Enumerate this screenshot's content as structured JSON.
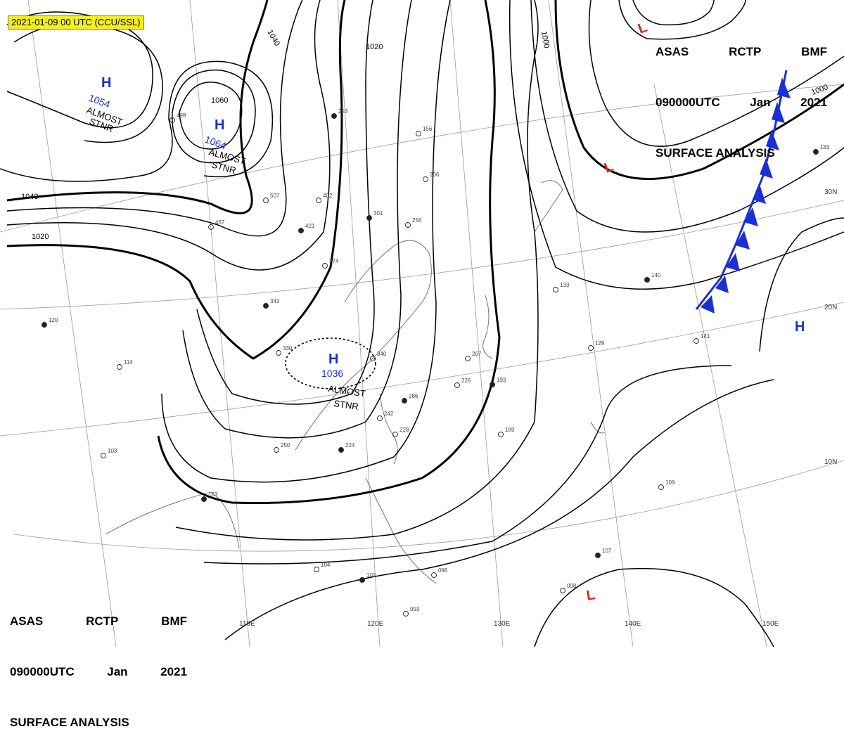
{
  "timestamp_label": "2021-01-09 00 UTC (CCU/SSL)",
  "title": {
    "row1": [
      "ASAS",
      "RCTP",
      "BMF"
    ],
    "row2": [
      "090000UTC",
      "Jan",
      "2021"
    ],
    "row3": "SURFACE ANALYSIS"
  },
  "latitude_labels": [
    "30N",
    "20N",
    "10N"
  ],
  "longitude_labels": [
    "110E",
    "120E",
    "130E",
    "140E",
    "150E"
  ],
  "isobar_labels": [
    "1040",
    "1020",
    "1060",
    "1000",
    "1040",
    "1020",
    "1000"
  ],
  "pressure_centers": [
    {
      "type": "H",
      "value": "1054",
      "note_line1": "ALMOST",
      "note_line2": "STNR"
    },
    {
      "type": "H",
      "value": "1064",
      "note_line1": "ALMOST",
      "note_line2": "STNR"
    },
    {
      "type": "H",
      "value": "1036",
      "note_line1": "ALMOST",
      "note_line2": "STNR"
    },
    {
      "type": "H"
    },
    {
      "type": "L"
    },
    {
      "type": "L"
    },
    {
      "type": "L"
    }
  ],
  "station_samples": [
    "253",
    "156",
    "206",
    "301",
    "256",
    "374",
    "343",
    "330",
    "340",
    "286",
    "242",
    "228",
    "224",
    "207",
    "226",
    "193",
    "169",
    "133",
    "140",
    "129",
    "141",
    "183",
    "109",
    "104",
    "102",
    "096",
    "093",
    "107",
    "098",
    "114",
    "120",
    "103",
    "250",
    "163",
    "457",
    "402",
    "421",
    "507",
    "499"
  ],
  "colors": {
    "high": "#1a2fd6",
    "low": "#e0241a",
    "front": "#1a2fd6",
    "isobar": "#000000",
    "highlight": "#f5ef1c"
  }
}
